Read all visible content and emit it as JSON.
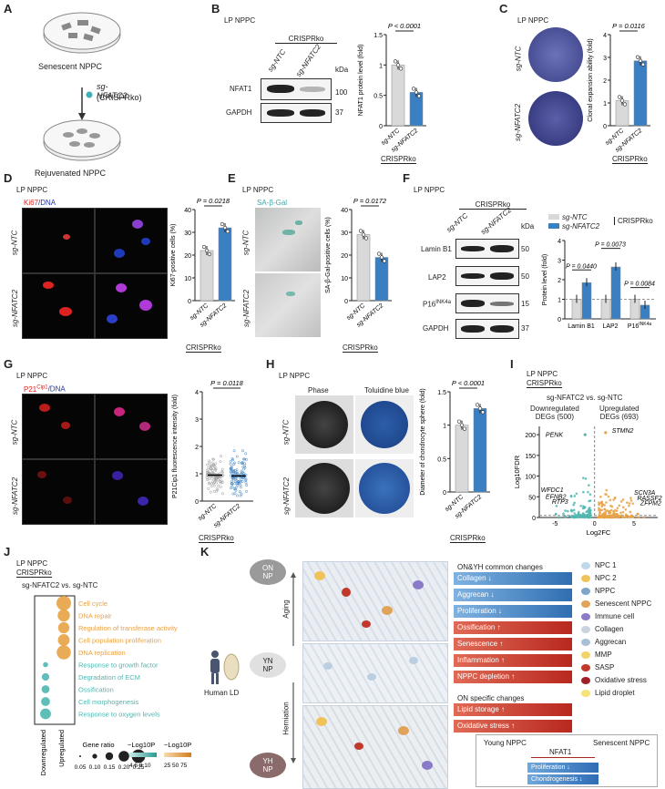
{
  "labels": {
    "A": "A",
    "B": "B",
    "C": "C",
    "D": "D",
    "E": "E",
    "F": "F",
    "G": "G",
    "H": "H",
    "I": "I",
    "J": "J",
    "K": "K"
  },
  "common": {
    "lp_nppc": "LP NPPC",
    "crisprko": "CRISPRko",
    "sg_ntc": "sg-NTC",
    "sg_nfatc2": "sg-NFATC2",
    "kda": "kDa"
  },
  "panelA": {
    "top": "Senescent NPPC",
    "sg": "sg-NFATC2",
    "sg_sub": "(CRISPRko)",
    "bottom": "Rejuvenated NPPC"
  },
  "panelB": {
    "rows": [
      "NFAT1",
      "GAPDH"
    ],
    "mw": [
      "100",
      "37"
    ],
    "pval": "P < 0.0001",
    "ylabel": "NFAT1 protein level (fold)",
    "chart_data": {
      "type": "bar",
      "categories": [
        "sg-NTC",
        "sg-NFATC2"
      ],
      "values": [
        1.0,
        0.55
      ],
      "ylim": [
        0,
        1.5
      ],
      "yticks": [
        0,
        0.5,
        1.0,
        1.5
      ],
      "ylabel": "NFAT1 protein level (fold)"
    }
  },
  "panelC": {
    "pval": "P = 0.0116",
    "ylabel": "Clonal expansion ability (fold)",
    "chart_data": {
      "type": "bar",
      "categories": [
        "sg-NTC",
        "sg-NFATC2"
      ],
      "values": [
        1.1,
        2.85
      ],
      "ylim": [
        0,
        4
      ],
      "yticks": [
        0,
        1,
        2,
        3,
        4
      ],
      "ylabel": "Clonal expansion ability (fold)"
    }
  },
  "panelD": {
    "stain1": "Ki67",
    "stain2": "/DNA",
    "pval": "P = 0.0218",
    "ylabel": "Ki67-positive cells (%)",
    "chart_data": {
      "type": "bar",
      "categories": [
        "sg-NTC",
        "sg-NFATC2"
      ],
      "values": [
        22,
        32
      ],
      "ylim": [
        0,
        40
      ],
      "yticks": [
        0,
        10,
        20,
        30,
        40
      ],
      "ylabel": "Ki67-positive cells (%)"
    }
  },
  "panelE": {
    "stain": "SA-β-Gal",
    "pval": "P = 0.0172",
    "ylabel": "SA-β-Gal-positive cells (%)",
    "chart_data": {
      "type": "bar",
      "categories": [
        "sg-NTC",
        "sg-NFATC2"
      ],
      "values": [
        29,
        19
      ],
      "ylim": [
        0,
        40
      ],
      "yticks": [
        0,
        10,
        20,
        30,
        40
      ],
      "ylabel": "SA-β-Gal-positive cells (%)"
    }
  },
  "panelF": {
    "rows": [
      "Lamin B1",
      "LAP2",
      "P16INK4a",
      "GAPDH"
    ],
    "mw": [
      "50",
      "50",
      "15",
      "37"
    ],
    "legend_ntc": "sg-NTC",
    "legend_nfatc2": "sg-NFATC2",
    "legend_group": "CRISPRko",
    "pvals": [
      "P = 0.0440",
      "P = 0.0073",
      "P = 0.0084"
    ],
    "ylabel": "Protein level (fold)",
    "chart_data": {
      "type": "bar",
      "categories": [
        "Lamin B1",
        "LAP2",
        "P16INK4a"
      ],
      "series": [
        {
          "name": "sg-NTC",
          "values": [
            1.0,
            1.0,
            1.0
          ]
        },
        {
          "name": "sg-NFATC2",
          "values": [
            1.85,
            2.65,
            0.7
          ]
        }
      ],
      "ylim": [
        0,
        4
      ],
      "yticks": [
        0,
        1,
        2,
        3,
        4
      ],
      "ylabel": "Protein level (fold)"
    }
  },
  "panelG": {
    "stain1": "P21",
    "sup": "Cip1",
    "stain2": "/DNA",
    "pval": "P = 0.0118",
    "ylabel": "P21Cip1 fluorescence intensity (fold)",
    "chart_data": {
      "type": "scatter",
      "categories": [
        "sg-NTC",
        "sg-NFATC2"
      ],
      "means": [
        0.95,
        0.92
      ],
      "ylim": [
        0,
        4
      ],
      "yticks": [
        0,
        1,
        2,
        3,
        4
      ],
      "ylabel": "P21Cip1 fluorescence intensity (fold)"
    }
  },
  "panelH": {
    "col1": "Phase",
    "col2": "Toluidine blue",
    "pval": "P < 0.0001",
    "ylabel": "Diameter of chondrocyte sphere (fold)",
    "chart_data": {
      "type": "bar",
      "categories": [
        "sg-NTC",
        "sg-NFATC2"
      ],
      "values": [
        1.0,
        1.25
      ],
      "ylim": [
        0,
        1.5
      ],
      "yticks": [
        0,
        0.5,
        1.0,
        1.5
      ],
      "ylabel": "Diameter of chondrocyte sphere (fold)"
    }
  },
  "panelI": {
    "title": "sg-NFATC2 vs. sg-NTC",
    "down": "Downregulated",
    "down2": "DEGs (500)",
    "up": "Upregulated",
    "up2": "DEGs (693)",
    "genes": [
      "PENK",
      "STMN2",
      "WFDC1",
      "EFNB2",
      "RTP3",
      "SCN3A",
      "RASSF2",
      "ZFPM2"
    ],
    "ylabel": "Log10FDR",
    "xlabel": "Log2FC",
    "chart_data": {
      "type": "scatter",
      "x_range": [
        -7,
        8
      ],
      "ylim": [
        0,
        220
      ],
      "xticks": [
        -5,
        0,
        5
      ],
      "yticks": [
        0,
        50,
        100,
        150,
        200
      ],
      "xlabel": "Log2FC",
      "ylabel": "Log10FDR"
    }
  },
  "panelJ": {
    "title": "sg-NFATC2 vs. sg-NTC",
    "terms": [
      "Cell cycle",
      "DNA repair",
      "Regulation of transferase activity",
      "Cell population proliferation",
      "DNA replication",
      "Response to growth factor",
      "Degradation of ECM",
      "Ossification",
      "Cell morphogenesis",
      "Response to oxygen levels"
    ],
    "xcats": [
      "Downregulated",
      "Upregulated"
    ],
    "legend_ratio": "Gene ratio",
    "ratio_ticks": [
      "0.05",
      "0.10",
      "0.15",
      "0.20",
      "0.25"
    ],
    "legend_p1": "−Log10P",
    "legend_p1_ticks": "4 6 8 10",
    "legend_p2": "−Log10P",
    "legend_p2_ticks": "25 50 75",
    "chart_data": {
      "type": "scatter",
      "categories": [
        "Downregulated",
        "Upregulated"
      ],
      "ratio": [
        0.25,
        0.2,
        0.18,
        0.19,
        0.24,
        0.05,
        0.1,
        0.11,
        0.13,
        0.17
      ],
      "group": [
        1,
        1,
        1,
        1,
        1,
        0,
        0,
        0,
        0,
        0
      ]
    }
  },
  "panelK": {
    "discs": [
      "ON",
      "NP",
      "YN",
      "NP",
      "YH",
      "NP"
    ],
    "side_labels": [
      "Aging",
      "Herniation"
    ],
    "human": "Human LD",
    "common_title": "ON&YH common changes",
    "common": [
      "Collagen ↓",
      "Aggrecan ↓",
      "Proliferation ↓",
      "Ossification ↑",
      "Senescence ↑",
      "Inflammation ↑",
      "NPPC depletion ↑"
    ],
    "specific_title": "ON specific changes",
    "specific": [
      "Lipid storage ↑",
      "Oxidative stress ↑"
    ],
    "legend": [
      "NPC 1",
      "NPC 2",
      "NPPC",
      "Senescent NPPC",
      "Immune cell",
      "Collagen",
      "Aggrecan",
      "MMP",
      "SASP",
      "Oxidative stress",
      "Lipid droplet"
    ],
    "young": "Young NPPC",
    "senescent": "Senescent NPPC",
    "nfat1": "NFAT1",
    "prolif": "Proliferation ↓",
    "chondro": "Chondrogenesis ↓"
  },
  "colors": {
    "blue": "#3a7fc1",
    "gray": "#d9d9d9",
    "orange": "#e8a245",
    "teal": "#4fb7b0",
    "red": "#c0392b"
  }
}
